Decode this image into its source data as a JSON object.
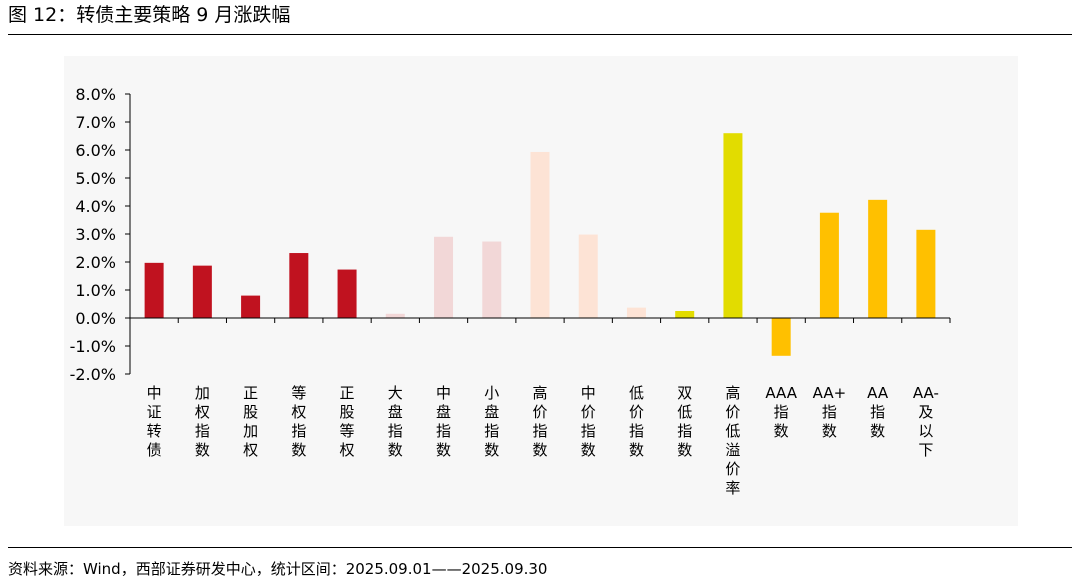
{
  "figure": {
    "title": "图 12：转债主要策略 9 月涨跌幅",
    "source": "资料来源：Wind，西部证券研发中心，统计区间：2025.09.01——2025.09.30"
  },
  "chart_data": {
    "type": "bar",
    "title": "",
    "xlabel": "",
    "ylabel": "",
    "ylim": [
      -0.02,
      0.08
    ],
    "ytick_step": 0.01,
    "ytick_format": "percent_1dp",
    "ytick_labels": [
      "-2.0%",
      "-1.0%",
      "0.0%",
      "1.0%",
      "2.0%",
      "3.0%",
      "4.0%",
      "5.0%",
      "6.0%",
      "7.0%",
      "8.0%"
    ],
    "legend": "none",
    "grid": false,
    "categories": [
      "中证转债",
      "加权指数",
      "正股加权",
      "等权指数",
      "正股等权",
      "大盘指数",
      "中盘指数",
      "小盘指数",
      "高价指数",
      "中价指数",
      "低价指数",
      "双低指数",
      "高价低溢价率",
      "AAA指数",
      "AA+指数",
      "AA指数",
      "AA-及以下"
    ],
    "values": [
      0.0197,
      0.0187,
      0.008,
      0.0232,
      0.0173,
      0.0015,
      0.029,
      0.0273,
      0.0593,
      0.0298,
      0.0037,
      0.0025,
      0.066,
      -0.0135,
      0.0376,
      0.0422,
      0.0315
    ],
    "colors": [
      "#c0121f",
      "#c0121f",
      "#c0121f",
      "#c0121f",
      "#c0121f",
      "#f2d7d7",
      "#f2d7d7",
      "#f2d7d7",
      "#fde3d5",
      "#fde3d5",
      "#fde3d5",
      "#e2dc00",
      "#e2dc00",
      "#ffc000",
      "#ffc000",
      "#ffc000",
      "#ffc000"
    ]
  }
}
